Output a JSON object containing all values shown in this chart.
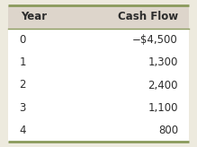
{
  "title_year": "Year",
  "title_cashflow": "Cash Flow",
  "years": [
    "0",
    "1",
    "2",
    "3",
    "4"
  ],
  "cashflows": [
    "−$4,500",
    "1,300",
    "2,400",
    "1,100",
    "800"
  ],
  "header_bg": "#ddd5cb",
  "outer_border_color": "#8a9a5b",
  "inner_border_color": "#8a9a5b",
  "body_bg": "#ffffff",
  "outer_bg": "#edeade",
  "header_font_size": 8.5,
  "body_font_size": 8.5,
  "title_font_weight": "bold",
  "text_color": "#2c2c2c",
  "border_lw": 2.0,
  "divider_lw": 1.0
}
